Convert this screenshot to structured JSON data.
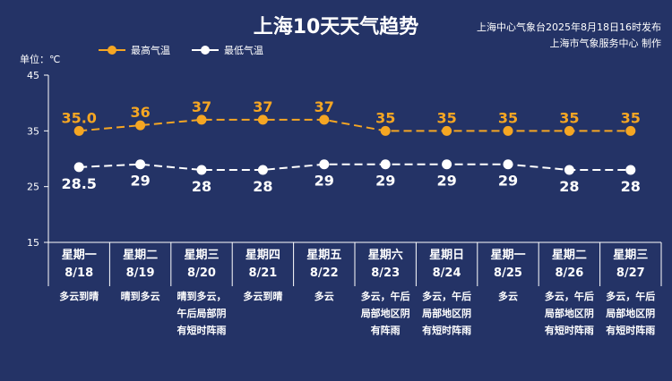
{
  "title": "上海10天天气趋势",
  "source_line1": "上海中心气象台2025年8月18日16时发布",
  "source_line2": "上海市气象服务中心 制作",
  "unit": "单位：℃",
  "colors": {
    "background": "#243366",
    "high": "#f5a623",
    "low": "#ffffff"
  },
  "chart_data": {
    "type": "line",
    "ylim": [
      15,
      45
    ],
    "yticks": [
      "45",
      "35",
      "25",
      "15"
    ],
    "grid": false,
    "legend_position": "top-left",
    "categories": [
      "8/18",
      "8/19",
      "8/20",
      "8/21",
      "8/22",
      "8/23",
      "8/24",
      "8/25",
      "8/26",
      "8/27"
    ],
    "weekdays": [
      "星期一",
      "星期二",
      "星期三",
      "星期四",
      "星期五",
      "星期六",
      "星期日",
      "星期一",
      "星期二",
      "星期三"
    ],
    "weather": [
      "多云到晴",
      "晴到多云",
      "晴到多云，午后局部阴有短时阵雨",
      "多云到晴",
      "多云",
      "多云，午后局部地区阴有阵雨",
      "多云，午后局部地区阴有短时阵雨",
      "多云",
      "多云，午后局部地区阴有短时阵雨",
      "多云，午后局部地区阴有短时阵雨"
    ],
    "weather_lines": [
      [
        "多云到晴"
      ],
      [
        "晴到多云"
      ],
      [
        "晴到多云，",
        "午后局部阴",
        "有短时阵雨"
      ],
      [
        "多云到晴"
      ],
      [
        "多云"
      ],
      [
        "多云，午后",
        "局部地区阴",
        "有阵雨"
      ],
      [
        "多云，午后",
        "局部地区阴",
        "有短时阵雨"
      ],
      [
        "多云"
      ],
      [
        "多云，午后",
        "局部地区阴",
        "有短时阵雨"
      ],
      [
        "多云，午后",
        "局部地区阴",
        "有短时阵雨"
      ]
    ],
    "series": [
      {
        "name": "最高气温",
        "values": [
          35.0,
          36,
          37,
          37,
          37,
          35,
          35,
          35,
          35,
          35
        ],
        "labels": [
          "35.0",
          "36",
          "37",
          "37",
          "37",
          "35",
          "35",
          "35",
          "35",
          "35"
        ]
      },
      {
        "name": "最低气温",
        "values": [
          28.5,
          29,
          28,
          28,
          29,
          29,
          29,
          29,
          28,
          28
        ],
        "labels": [
          "28.5",
          "29",
          "28",
          "28",
          "29",
          "29",
          "29",
          "29",
          "28",
          "28"
        ]
      }
    ]
  }
}
